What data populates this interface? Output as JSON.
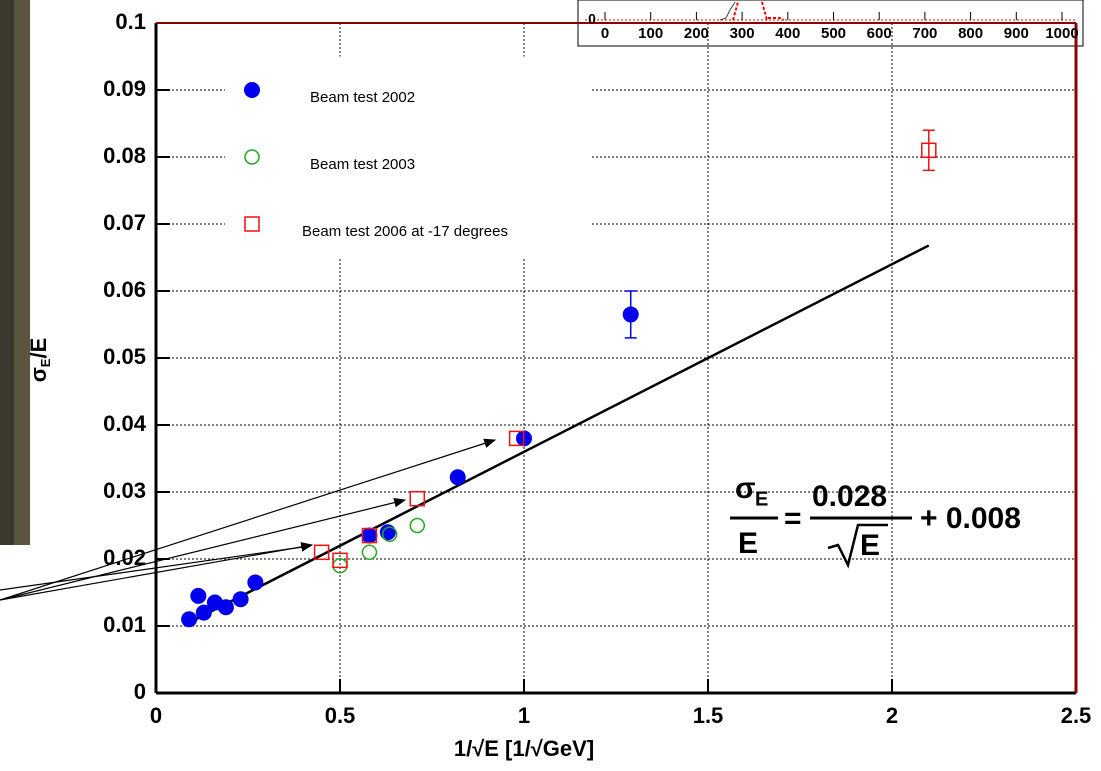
{
  "chart_data": {
    "type": "scatter",
    "xlabel": "1/√E [1/√GeV]",
    "ylabel": {
      "symbol": "σ",
      "sub": "E",
      "rest": "/E"
    },
    "xlim": [
      0,
      2.5
    ],
    "ylim": [
      0,
      0.1
    ],
    "xticks": [
      0,
      0.5,
      1,
      1.5,
      2,
      2.5
    ],
    "yticks": [
      0,
      0.01,
      0.02,
      0.03,
      0.04,
      0.05,
      0.06,
      0.07,
      0.08,
      0.09,
      0.1
    ],
    "grid": true,
    "series": [
      {
        "name": "Beam test 2002",
        "color": "#0000ee",
        "marker": "filled-circle",
        "x": [
          0.09,
          0.115,
          0.13,
          0.16,
          0.19,
          0.23,
          0.27,
          0.58,
          0.63,
          0.82,
          1.0,
          1.29
        ],
        "values": [
          0.011,
          0.0145,
          0.012,
          0.0135,
          0.0128,
          0.014,
          0.0165,
          0.0235,
          0.024,
          0.0322,
          0.038,
          0.0565
        ],
        "errors": [
          null,
          null,
          null,
          null,
          null,
          null,
          null,
          null,
          null,
          null,
          null,
          0.0035
        ]
      },
      {
        "name": "Beam test 2003",
        "color": "#22aa22",
        "marker": "open-circle",
        "x": [
          0.5,
          0.58,
          0.635,
          0.71
        ],
        "values": [
          0.019,
          0.021,
          0.0237,
          0.025
        ],
        "errors": [
          null,
          null,
          null,
          null
        ]
      },
      {
        "name": "Beam test 2006 at -17 degrees",
        "color": "#ee1111",
        "marker": "open-square",
        "x": [
          0.45,
          0.5,
          0.58,
          0.71,
          0.98,
          2.1
        ],
        "values": [
          0.021,
          0.0198,
          0.0235,
          0.029,
          0.038,
          0.081
        ],
        "errors": [
          null,
          null,
          null,
          null,
          null,
          0.003
        ]
      }
    ],
    "fit": {
      "x": [
        0.09,
        2.1
      ],
      "values": [
        0.0105,
        0.0668
      ]
    },
    "formula": {
      "sigma": "σ",
      "sub": "E",
      "denominator": "E",
      "equals": "=",
      "coef": "0.028",
      "root_arg": "E",
      "plus": "+ 0.008"
    },
    "inset": {
      "xticks": [
        0,
        100,
        200,
        300,
        400,
        500,
        600,
        700,
        800,
        900,
        1000
      ],
      "ytick": 0
    }
  }
}
